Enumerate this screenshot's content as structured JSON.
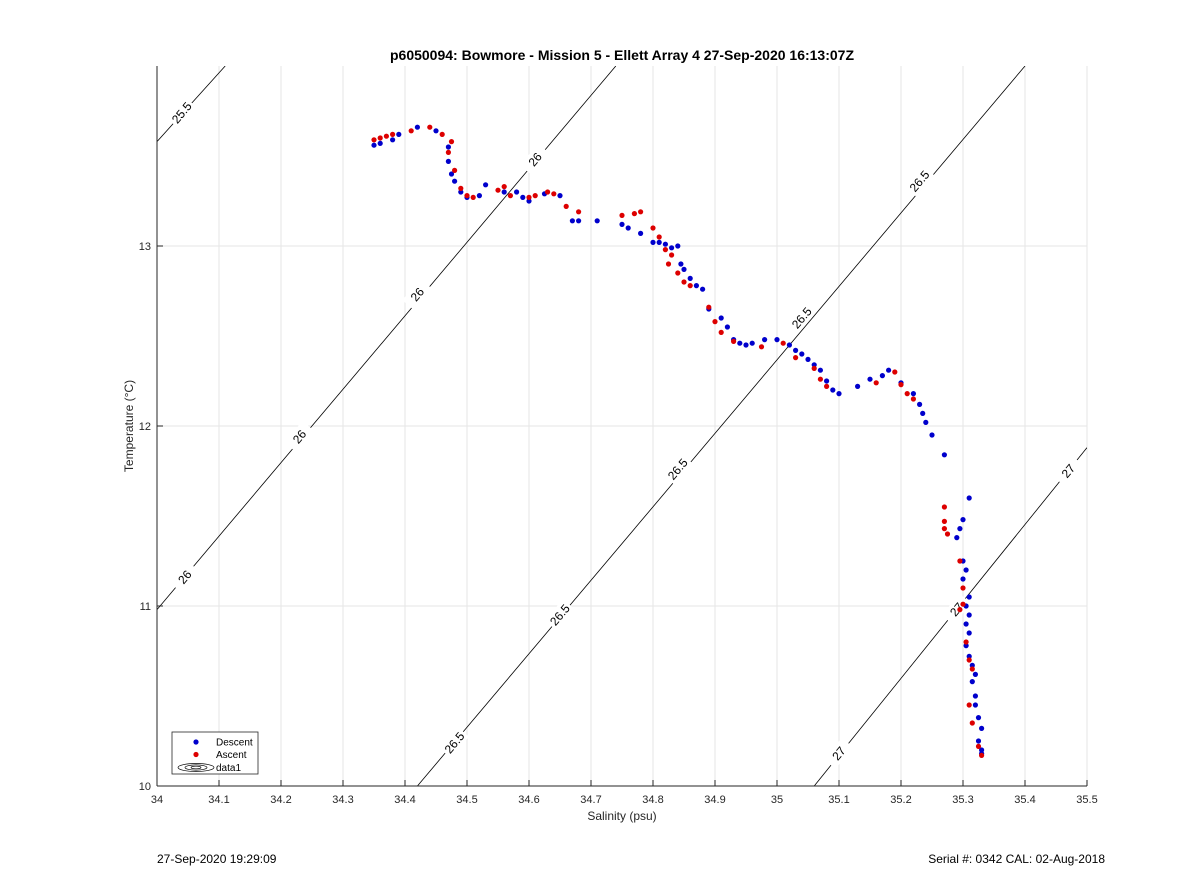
{
  "footer": {
    "left": "27-Sep-2020 19:29:09",
    "right": "Serial #: 0342  CAL: 02-Aug-2018"
  },
  "colors": {
    "descent": "#0000cc",
    "ascent": "#dd0000"
  },
  "chart_data": {
    "type": "scatter",
    "title": "p6050094: Bowmore - Mission 5 - Ellett Array 4 27-Sep-2020 16:13:07Z",
    "xlabel": "Salinity (psu)",
    "ylabel": "Temperature (°C)",
    "xlim": [
      34,
      35.5
    ],
    "ylim": [
      10,
      14
    ],
    "x_ticks": [
      "34",
      "34.1",
      "34.2",
      "34.3",
      "34.4",
      "34.5",
      "34.6",
      "34.7",
      "34.8",
      "34.9",
      "35",
      "35.1",
      "35.2",
      "35.3",
      "35.4",
      "35.5"
    ],
    "y_ticks": [
      "10",
      "11",
      "12",
      "13"
    ],
    "grid": true,
    "legend_position": "bottom-left",
    "legend": [
      "Descent",
      "Ascent",
      "data1"
    ],
    "density_contours": [
      {
        "label": "25.5",
        "points": [
          [
            34.0,
            13.58
          ],
          [
            34.11,
            14.0
          ]
        ]
      },
      {
        "label": "26",
        "points": [
          [
            34.0,
            10.98
          ],
          [
            34.74,
            14.0
          ]
        ]
      },
      {
        "label": "26.5",
        "points": [
          [
            34.42,
            10.0
          ],
          [
            35.4,
            14.0
          ]
        ]
      },
      {
        "label": "27",
        "points": [
          [
            35.06,
            10.0
          ],
          [
            35.5,
            11.88
          ]
        ]
      }
    ],
    "contour_labels": [
      {
        "text": "25.5",
        "at": [
          34.04,
          13.74
        ]
      },
      {
        "text": "26",
        "at": [
          34.045,
          11.16
        ]
      },
      {
        "text": "26",
        "at": [
          34.23,
          11.94
        ]
      },
      {
        "text": "26",
        "at": [
          34.42,
          12.73
        ]
      },
      {
        "text": "26",
        "at": [
          34.61,
          13.48
        ]
      },
      {
        "text": "26.5",
        "at": [
          34.48,
          10.24
        ]
      },
      {
        "text": "26.5",
        "at": [
          34.65,
          10.95
        ]
      },
      {
        "text": "26.5",
        "at": [
          34.84,
          11.76
        ]
      },
      {
        "text": "26.5",
        "at": [
          35.04,
          12.6
        ]
      },
      {
        "text": "26.5",
        "at": [
          35.23,
          13.36
        ]
      },
      {
        "text": "27",
        "at": [
          35.1,
          10.18
        ]
      },
      {
        "text": "27",
        "at": [
          35.29,
          10.98
        ]
      },
      {
        "text": "27",
        "at": [
          35.47,
          11.75
        ]
      }
    ],
    "series": [
      {
        "name": "Descent",
        "color": "#0000cc",
        "points": [
          [
            34.35,
            13.56
          ],
          [
            34.36,
            13.57
          ],
          [
            34.38,
            13.59
          ],
          [
            34.39,
            13.62
          ],
          [
            34.42,
            13.66
          ],
          [
            34.45,
            13.64
          ],
          [
            34.47,
            13.55
          ],
          [
            34.47,
            13.47
          ],
          [
            34.475,
            13.4
          ],
          [
            34.48,
            13.36
          ],
          [
            34.49,
            13.3
          ],
          [
            34.5,
            13.27
          ],
          [
            34.52,
            13.28
          ],
          [
            34.53,
            13.34
          ],
          [
            34.56,
            13.3
          ],
          [
            34.58,
            13.3
          ],
          [
            34.59,
            13.27
          ],
          [
            34.6,
            13.25
          ],
          [
            34.625,
            13.29
          ],
          [
            34.65,
            13.28
          ],
          [
            34.67,
            13.14
          ],
          [
            34.68,
            13.14
          ],
          [
            34.71,
            13.14
          ],
          [
            34.75,
            13.12
          ],
          [
            34.76,
            13.1
          ],
          [
            34.78,
            13.07
          ],
          [
            34.8,
            13.02
          ],
          [
            34.81,
            13.02
          ],
          [
            34.82,
            13.01
          ],
          [
            34.83,
            12.99
          ],
          [
            34.84,
            13.0
          ],
          [
            34.845,
            12.9
          ],
          [
            34.85,
            12.87
          ],
          [
            34.86,
            12.82
          ],
          [
            34.87,
            12.78
          ],
          [
            34.88,
            12.76
          ],
          [
            34.89,
            12.65
          ],
          [
            34.91,
            12.6
          ],
          [
            34.92,
            12.55
          ],
          [
            34.93,
            12.48
          ],
          [
            34.94,
            12.46
          ],
          [
            34.95,
            12.45
          ],
          [
            34.96,
            12.46
          ],
          [
            34.98,
            12.48
          ],
          [
            35.0,
            12.48
          ],
          [
            35.02,
            12.45
          ],
          [
            35.03,
            12.42
          ],
          [
            35.04,
            12.4
          ],
          [
            35.05,
            12.37
          ],
          [
            35.06,
            12.34
          ],
          [
            35.07,
            12.31
          ],
          [
            35.08,
            12.25
          ],
          [
            35.09,
            12.2
          ],
          [
            35.1,
            12.18
          ],
          [
            35.13,
            12.22
          ],
          [
            35.15,
            12.26
          ],
          [
            35.17,
            12.28
          ],
          [
            35.18,
            12.31
          ],
          [
            35.2,
            12.24
          ],
          [
            35.22,
            12.18
          ],
          [
            35.23,
            12.12
          ],
          [
            35.235,
            12.07
          ],
          [
            35.24,
            12.02
          ],
          [
            35.25,
            11.95
          ],
          [
            35.27,
            11.84
          ],
          [
            35.31,
            11.6
          ],
          [
            35.3,
            11.48
          ],
          [
            35.295,
            11.43
          ],
          [
            35.29,
            11.38
          ],
          [
            35.3,
            11.25
          ],
          [
            35.305,
            11.2
          ],
          [
            35.3,
            11.15
          ],
          [
            35.31,
            11.05
          ],
          [
            35.305,
            11.0
          ],
          [
            35.31,
            10.95
          ],
          [
            35.305,
            10.9
          ],
          [
            35.31,
            10.85
          ],
          [
            35.305,
            10.78
          ],
          [
            35.31,
            10.72
          ],
          [
            35.315,
            10.67
          ],
          [
            35.32,
            10.62
          ],
          [
            35.315,
            10.58
          ],
          [
            35.32,
            10.5
          ],
          [
            35.32,
            10.45
          ],
          [
            35.325,
            10.38
          ],
          [
            35.33,
            10.32
          ],
          [
            35.325,
            10.25
          ],
          [
            35.33,
            10.2
          ],
          [
            35.33,
            10.18
          ]
        ]
      },
      {
        "name": "Ascent",
        "color": "#dd0000",
        "points": [
          [
            34.35,
            13.59
          ],
          [
            34.36,
            13.6
          ],
          [
            34.37,
            13.61
          ],
          [
            34.38,
            13.62
          ],
          [
            34.41,
            13.64
          ],
          [
            34.44,
            13.66
          ],
          [
            34.46,
            13.62
          ],
          [
            34.475,
            13.58
          ],
          [
            34.47,
            13.52
          ],
          [
            34.48,
            13.42
          ],
          [
            34.49,
            13.32
          ],
          [
            34.5,
            13.28
          ],
          [
            34.51,
            13.27
          ],
          [
            34.55,
            13.31
          ],
          [
            34.56,
            13.33
          ],
          [
            34.57,
            13.28
          ],
          [
            34.6,
            13.27
          ],
          [
            34.61,
            13.28
          ],
          [
            34.63,
            13.3
          ],
          [
            34.64,
            13.29
          ],
          [
            34.66,
            13.22
          ],
          [
            34.68,
            13.19
          ],
          [
            34.75,
            13.17
          ],
          [
            34.77,
            13.18
          ],
          [
            34.78,
            13.19
          ],
          [
            34.8,
            13.1
          ],
          [
            34.81,
            13.05
          ],
          [
            34.82,
            12.98
          ],
          [
            34.83,
            12.95
          ],
          [
            34.825,
            12.9
          ],
          [
            34.84,
            12.85
          ],
          [
            34.85,
            12.8
          ],
          [
            34.86,
            12.78
          ],
          [
            34.89,
            12.66
          ],
          [
            34.9,
            12.58
          ],
          [
            34.91,
            12.52
          ],
          [
            34.93,
            12.47
          ],
          [
            34.975,
            12.44
          ],
          [
            35.01,
            12.46
          ],
          [
            35.03,
            12.38
          ],
          [
            35.06,
            12.32
          ],
          [
            35.07,
            12.26
          ],
          [
            35.08,
            12.22
          ],
          [
            35.16,
            12.24
          ],
          [
            35.19,
            12.3
          ],
          [
            35.2,
            12.23
          ],
          [
            35.21,
            12.18
          ],
          [
            35.22,
            12.15
          ],
          [
            35.27,
            11.55
          ],
          [
            35.27,
            11.47
          ],
          [
            35.27,
            11.43
          ],
          [
            35.275,
            11.4
          ],
          [
            35.295,
            11.25
          ],
          [
            35.3,
            11.1
          ],
          [
            35.3,
            11.01
          ],
          [
            35.295,
            10.98
          ],
          [
            35.305,
            10.8
          ],
          [
            35.31,
            10.7
          ],
          [
            35.315,
            10.65
          ],
          [
            35.31,
            10.45
          ],
          [
            35.315,
            10.35
          ],
          [
            35.325,
            10.22
          ],
          [
            35.33,
            10.17
          ]
        ]
      }
    ]
  }
}
